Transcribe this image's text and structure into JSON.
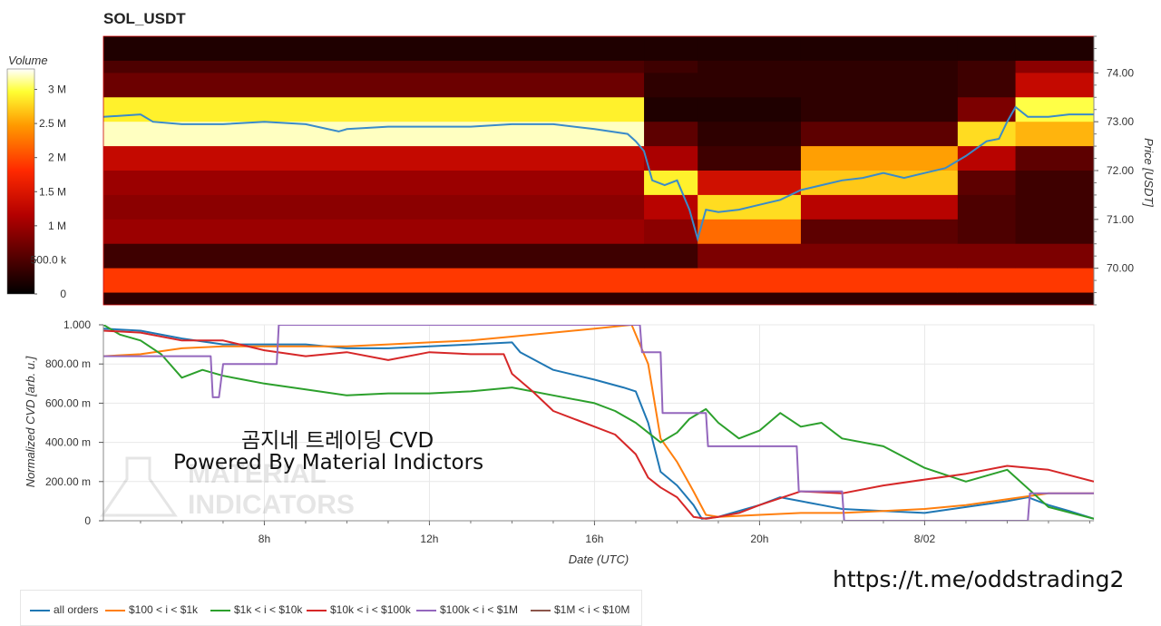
{
  "title": "SOL_USDT",
  "heatmap": {
    "colorbar": {
      "title": "Volume",
      "ticks": [
        "3 M",
        "2.5 M",
        "2 M",
        "1.5 M",
        "1 M",
        "500.0 k",
        "0"
      ],
      "tick_values": [
        3000000,
        2500000,
        2000000,
        1500000,
        1000000,
        500000,
        0
      ],
      "max": 3300000
    },
    "y_axis": {
      "label": "Price [USDT]",
      "ticks": [
        "74.00",
        "73.00",
        "72.00",
        "71.00",
        "70.00"
      ],
      "tick_values": [
        74.0,
        73.0,
        72.0,
        71.0,
        70.0
      ],
      "range": [
        69.25,
        74.75
      ]
    }
  },
  "cvd": {
    "y_axis": {
      "label": "Normalized CVD [arb. u.]",
      "ticks": [
        "1.000",
        "800.00 m",
        "600.00 m",
        "400.00 m",
        "200.00 m",
        "0"
      ],
      "tick_values": [
        1.0,
        0.8,
        0.6,
        0.4,
        0.2,
        0.0
      ],
      "range": [
        0,
        1
      ]
    },
    "x_axis": {
      "label": "Date (UTC)",
      "ticks": [
        "8h",
        "12h",
        "16h",
        "20h",
        "8/02"
      ],
      "tick_values": [
        8,
        12,
        16,
        20,
        24
      ],
      "range": [
        4.1,
        28.1
      ]
    }
  },
  "watermark": {
    "line1": "곰지네 트레이딩 CVD",
    "line2": "Powered By Material Indictors",
    "logo_line1": "MATERIAL",
    "logo_line2": "INDICATORS"
  },
  "link": "https://t.me/oddstrading2",
  "legend": [
    {
      "label": "all orders",
      "color": "#1f77b4"
    },
    {
      "label": "$100 < i < $1k",
      "color": "#ff7f0e"
    },
    {
      "label": "$1k < i < $10k",
      "color": "#2ca02c"
    },
    {
      "label": "$10k < i < $100k",
      "color": "#d62728"
    },
    {
      "label": "$100k < i < $1M",
      "color": "#9467bd"
    },
    {
      "label": "$1M < i < $10M",
      "color": "#8c564b"
    }
  ],
  "chart_data": [
    {
      "type": "heatmap",
      "title": "SOL_USDT",
      "ylabel": "Price [USDT]",
      "colorbar_label": "Volume",
      "ylim": [
        69.25,
        74.75
      ],
      "x_range_hours": [
        4.1,
        28.1
      ],
      "price_bins": [
        74.5,
        74.25,
        74.0,
        73.5,
        73.0,
        72.5,
        72.0,
        71.5,
        71.0,
        70.5,
        70.0,
        69.5
      ],
      "segments": [
        {
          "x_start": 4.1,
          "x_end": 17.2,
          "volumes": [
            200000,
            500000,
            700000,
            2900000,
            3200000,
            1300000,
            1000000,
            900000,
            1000000,
            400000,
            1900000,
            300000
          ]
        },
        {
          "x_start": 17.2,
          "x_end": 18.5,
          "volumes": [
            200000,
            400000,
            300000,
            200000,
            600000,
            1100000,
            2900000,
            1200000,
            900000,
            400000,
            1900000,
            300000
          ]
        },
        {
          "x_start": 18.5,
          "x_end": 21.0,
          "volumes": [
            200000,
            300000,
            300000,
            200000,
            300000,
            400000,
            1400000,
            2800000,
            2200000,
            800000,
            1900000,
            300000
          ]
        },
        {
          "x_start": 21.0,
          "x_end": 24.8,
          "volumes": [
            200000,
            300000,
            300000,
            300000,
            600000,
            2500000,
            2700000,
            1200000,
            600000,
            800000,
            1900000,
            300000
          ]
        },
        {
          "x_start": 24.8,
          "x_end": 26.2,
          "volumes": [
            200000,
            400000,
            400000,
            800000,
            2800000,
            1200000,
            600000,
            500000,
            500000,
            800000,
            1900000,
            300000
          ]
        },
        {
          "x_start": 26.2,
          "x_end": 28.1,
          "volumes": [
            200000,
            900000,
            1300000,
            3000000,
            2600000,
            600000,
            400000,
            400000,
            400000,
            800000,
            1900000,
            300000
          ]
        }
      ],
      "price_line": {
        "x": [
          4.1,
          5.0,
          5.3,
          6.0,
          7.0,
          8.0,
          9.0,
          9.8,
          10.0,
          11.0,
          12.0,
          13.0,
          14.0,
          15.0,
          16.0,
          16.8,
          17.0,
          17.2,
          17.4,
          17.7,
          18.0,
          18.3,
          18.5,
          18.7,
          19.0,
          19.5,
          20.0,
          20.5,
          21.0,
          21.5,
          22.0,
          22.5,
          23.0,
          23.5,
          24.0,
          24.5,
          25.0,
          25.5,
          25.8,
          26.0,
          26.2,
          26.5,
          27.0,
          27.5,
          28.1
        ],
        "y": [
          73.1,
          73.15,
          73.0,
          72.95,
          72.95,
          73.0,
          72.95,
          72.8,
          72.85,
          72.9,
          72.9,
          72.9,
          72.95,
          72.95,
          72.85,
          72.75,
          72.6,
          72.4,
          71.8,
          71.7,
          71.8,
          71.2,
          70.6,
          71.2,
          71.15,
          71.2,
          71.3,
          71.4,
          71.6,
          71.7,
          71.8,
          71.85,
          71.95,
          71.85,
          71.95,
          72.05,
          72.3,
          72.6,
          72.65,
          73.0,
          73.3,
          73.1,
          73.1,
          73.15,
          73.15
        ],
        "color": "#3a8bc9"
      }
    },
    {
      "type": "line",
      "xlabel": "Date (UTC)",
      "ylabel": "Normalized CVD [arb. u.]",
      "ylim": [
        0,
        1
      ],
      "x_ticks": [
        "8h",
        "12h",
        "16h",
        "20h",
        "8/02"
      ],
      "series": [
        {
          "name": "all orders",
          "color": "#1f77b4",
          "x": [
            4.1,
            5,
            6,
            7,
            8,
            9,
            10,
            11,
            12,
            13,
            14,
            14.2,
            15,
            16,
            16.7,
            17,
            17.3,
            17.6,
            18,
            18.4,
            18.6,
            19,
            19.5,
            20,
            20.5,
            21,
            21.5,
            22,
            23,
            24,
            25,
            26,
            26.5,
            27,
            27.5,
            28.1
          ],
          "y": [
            0.98,
            0.97,
            0.93,
            0.9,
            0.9,
            0.9,
            0.88,
            0.88,
            0.89,
            0.9,
            0.91,
            0.86,
            0.77,
            0.72,
            0.68,
            0.66,
            0.5,
            0.25,
            0.18,
            0.08,
            0.01,
            0.02,
            0.05,
            0.08,
            0.12,
            0.1,
            0.08,
            0.06,
            0.05,
            0.04,
            0.07,
            0.1,
            0.12,
            0.08,
            0.05,
            0.01
          ]
        },
        {
          "name": "$100 < i < $1k",
          "color": "#ff7f0e",
          "x": [
            4.1,
            5,
            6,
            7,
            8,
            9,
            10,
            11,
            12,
            13,
            14,
            15,
            16,
            16.9,
            17.3,
            17.6,
            18,
            18.4,
            18.7,
            19,
            20,
            21,
            22,
            23,
            24,
            25,
            26,
            27,
            28.1
          ],
          "y": [
            0.84,
            0.85,
            0.88,
            0.89,
            0.89,
            0.89,
            0.89,
            0.9,
            0.91,
            0.92,
            0.94,
            0.96,
            0.98,
            1.0,
            0.8,
            0.42,
            0.3,
            0.15,
            0.03,
            0.02,
            0.03,
            0.04,
            0.04,
            0.05,
            0.06,
            0.08,
            0.11,
            0.14,
            0.14
          ]
        },
        {
          "name": "$1k < i < $10k",
          "color": "#2ca02c",
          "x": [
            4.1,
            4.5,
            5,
            5.5,
            6,
            6.5,
            7,
            7.5,
            8,
            9,
            10,
            11,
            12,
            13,
            14,
            15,
            16,
            16.5,
            17,
            17.3,
            17.6,
            18,
            18.3,
            18.7,
            19,
            19.5,
            20,
            20.5,
            21,
            21.5,
            22,
            23,
            24,
            25,
            26,
            27,
            28.1
          ],
          "y": [
            1.0,
            0.95,
            0.92,
            0.85,
            0.73,
            0.77,
            0.74,
            0.72,
            0.7,
            0.67,
            0.64,
            0.65,
            0.65,
            0.66,
            0.68,
            0.64,
            0.6,
            0.56,
            0.5,
            0.45,
            0.4,
            0.45,
            0.52,
            0.57,
            0.5,
            0.42,
            0.46,
            0.55,
            0.48,
            0.5,
            0.42,
            0.38,
            0.27,
            0.2,
            0.26,
            0.07,
            0.01
          ]
        },
        {
          "name": "$10k < i < $100k",
          "color": "#d62728",
          "x": [
            4.1,
            5,
            6,
            7,
            8,
            9,
            10,
            11,
            12,
            13,
            13.8,
            14,
            14.5,
            15,
            16,
            16.5,
            17,
            17.3,
            17.6,
            18,
            18.4,
            18.7,
            19,
            19.5,
            20,
            21,
            22,
            23,
            24,
            25,
            26,
            27,
            28.1
          ],
          "y": [
            0.97,
            0.96,
            0.92,
            0.92,
            0.87,
            0.84,
            0.86,
            0.82,
            0.86,
            0.85,
            0.85,
            0.75,
            0.66,
            0.56,
            0.48,
            0.44,
            0.34,
            0.22,
            0.17,
            0.12,
            0.02,
            0.01,
            0.02,
            0.04,
            0.08,
            0.15,
            0.14,
            0.18,
            0.21,
            0.24,
            0.28,
            0.26,
            0.2
          ]
        },
        {
          "name": "$100k < i < $1M",
          "color": "#9467bd",
          "x": [
            4.1,
            6.7,
            6.75,
            6.9,
            7.0,
            8.3,
            8.35,
            17.1,
            17.15,
            17.6,
            17.65,
            18.7,
            18.75,
            20.9,
            20.95,
            22.0,
            22.05,
            26.5,
            26.55,
            28.1
          ],
          "y": [
            0.84,
            0.84,
            0.63,
            0.63,
            0.8,
            0.8,
            1.0,
            1.0,
            0.86,
            0.86,
            0.55,
            0.55,
            0.38,
            0.38,
            0.15,
            0.15,
            0.0,
            0.0,
            0.14,
            0.14
          ]
        },
        {
          "name": "$1M < i < $10M",
          "color": "#8c564b",
          "x": [],
          "y": []
        }
      ]
    }
  ]
}
